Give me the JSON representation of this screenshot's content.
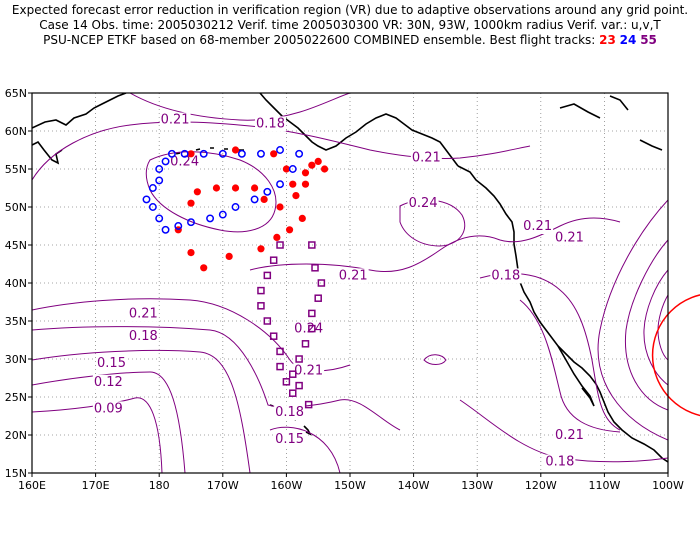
{
  "title": {
    "line1": "Expected forecast error reduction in verification region (VR) due to adaptive observations around any grid point.",
    "line2": "Case 14   Obs. time: 2005030212   Verif. time 2005030300   VR: 30N, 93W, 1000km radius   Verif. var.: u,v,T",
    "line3_prefix": "PSU-NCEP ETKF based on 68-member 2005022600 COMBINED ensemble.   Best flight tracks:",
    "tracks": [
      {
        "label": "23",
        "color": "#ff0000"
      },
      {
        "label": "24",
        "color": "#0000ff"
      },
      {
        "label": "55",
        "color": "#800080"
      }
    ]
  },
  "map": {
    "lon_range": [
      160,
      260
    ],
    "lat_range": [
      15,
      65
    ],
    "x_ticks": [
      "160E",
      "170E",
      "180",
      "170W",
      "160W",
      "150W",
      "140W",
      "130W",
      "120W",
      "110W",
      "100W"
    ],
    "y_ticks": [
      "15N",
      "20N",
      "25N",
      "30N",
      "35N",
      "40N",
      "45N",
      "50N",
      "55N",
      "60N",
      "65N"
    ],
    "contour_color": "#800080",
    "contour_labels": [
      {
        "text": "0.21",
        "lon": 182.5,
        "lat": 61.5
      },
      {
        "text": "0.18",
        "lon": 197.5,
        "lat": 61.0
      },
      {
        "text": "0.24",
        "lon": 184.0,
        "lat": 56.0
      },
      {
        "text": "0.21",
        "lon": 222.0,
        "lat": 56.5
      },
      {
        "text": "0.24",
        "lon": 221.5,
        "lat": 50.5
      },
      {
        "text": "0.21",
        "lon": 239.5,
        "lat": 47.5
      },
      {
        "text": "0.21",
        "lon": 244.5,
        "lat": 46.0
      },
      {
        "text": "0.21",
        "lon": 210.5,
        "lat": 41.0
      },
      {
        "text": "0.18",
        "lon": 234.5,
        "lat": 41.0
      },
      {
        "text": "0.21",
        "lon": 177.5,
        "lat": 36.0
      },
      {
        "text": "0.18",
        "lon": 177.5,
        "lat": 33.0
      },
      {
        "text": "0.24",
        "lon": 203.5,
        "lat": 34.0
      },
      {
        "text": "0.15",
        "lon": 172.5,
        "lat": 29.5
      },
      {
        "text": "0.21",
        "lon": 203.5,
        "lat": 28.5
      },
      {
        "text": "0.12",
        "lon": 172.0,
        "lat": 27.0
      },
      {
        "text": "0.09",
        "lon": 172.0,
        "lat": 23.5
      },
      {
        "text": "0.18",
        "lon": 200.5,
        "lat": 23.0
      },
      {
        "text": "0.15",
        "lon": 200.5,
        "lat": 19.5
      },
      {
        "text": "0.21",
        "lon": 244.5,
        "lat": 20.0
      },
      {
        "text": "0.18",
        "lon": 243.0,
        "lat": 16.5
      }
    ],
    "verification_region": {
      "center_lon": 267,
      "center_lat": 30.5,
      "color": "#ff0000"
    },
    "track_23_points": [
      [
        185,
        57
      ],
      [
        192,
        57.5
      ],
      [
        198,
        57
      ],
      [
        200,
        55
      ],
      [
        203,
        54.5
      ],
      [
        205,
        56
      ],
      [
        206,
        55
      ],
      [
        203,
        53
      ],
      [
        201.5,
        51.5
      ],
      [
        202.5,
        48.5
      ],
      [
        200.5,
        47
      ],
      [
        198.5,
        46
      ],
      [
        196,
        44.5
      ],
      [
        191,
        43.5
      ],
      [
        187,
        42
      ],
      [
        185,
        44
      ],
      [
        183,
        47
      ],
      [
        185,
        50.5
      ],
      [
        186,
        52
      ],
      [
        189,
        52.5
      ],
      [
        192,
        52.5
      ],
      [
        195,
        52.5
      ],
      [
        196.5,
        51
      ],
      [
        199,
        50
      ],
      [
        201,
        53
      ],
      [
        204,
        55.5
      ]
    ],
    "track_24_points": [
      [
        178,
        51
      ],
      [
        179,
        50
      ],
      [
        180,
        48.5
      ],
      [
        181,
        47
      ],
      [
        183,
        47.5
      ],
      [
        185,
        48
      ],
      [
        188,
        48.5
      ],
      [
        190,
        49
      ],
      [
        192,
        50
      ],
      [
        195,
        51
      ],
      [
        197,
        52
      ],
      [
        199,
        53
      ],
      [
        201,
        55
      ],
      [
        202,
        57
      ],
      [
        199,
        57.5
      ],
      [
        196,
        57
      ],
      [
        193,
        57
      ],
      [
        190,
        57
      ],
      [
        187,
        57
      ],
      [
        184,
        57
      ],
      [
        182,
        57
      ],
      [
        181,
        56
      ],
      [
        180,
        55
      ],
      [
        180,
        53.5
      ],
      [
        179,
        52.5
      ]
    ],
    "track_55_points": [
      [
        199,
        45
      ],
      [
        198,
        43
      ],
      [
        197,
        41
      ],
      [
        196,
        39
      ],
      [
        196,
        37
      ],
      [
        197,
        35
      ],
      [
        198,
        33
      ],
      [
        199,
        31
      ],
      [
        199,
        29
      ],
      [
        200,
        27
      ],
      [
        201,
        25.5
      ],
      [
        203.5,
        24
      ],
      [
        202,
        26.5
      ],
      [
        201,
        28
      ],
      [
        202,
        30
      ],
      [
        203,
        32
      ],
      [
        204,
        34
      ],
      [
        204,
        36
      ],
      [
        205,
        38
      ],
      [
        205.5,
        40
      ],
      [
        204.5,
        42
      ],
      [
        204,
        45
      ]
    ]
  }
}
